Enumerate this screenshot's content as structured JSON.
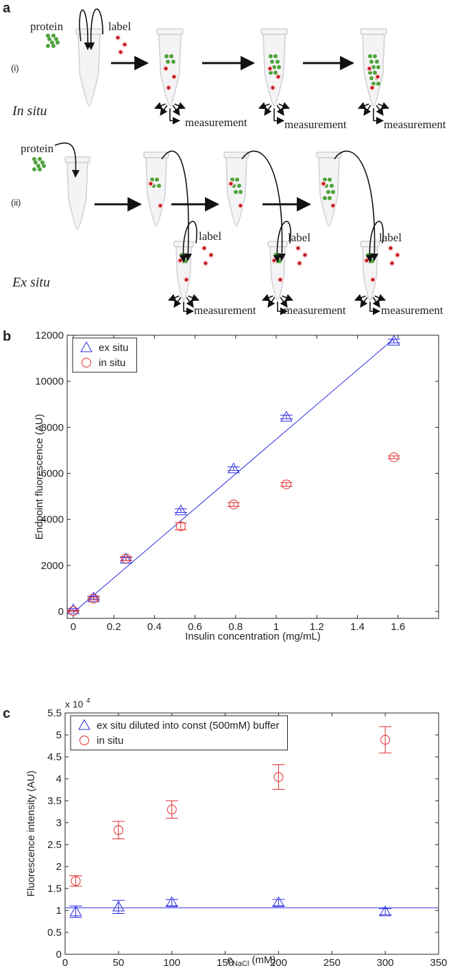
{
  "panel_labels": [
    "a",
    "b",
    "c"
  ],
  "diagram": {
    "row_i": {
      "label": "(i)",
      "name": "In situ",
      "protein": "protein",
      "label_reagent": "label",
      "measurements": [
        "measurement",
        "measurement",
        "measurement"
      ]
    },
    "row_ii": {
      "label": "(ii)",
      "name": "Ex situ",
      "protein": "protein",
      "label_reagents": [
        "label",
        "label",
        "label"
      ],
      "measurements": [
        "measurement",
        "measurement",
        "measurement"
      ]
    }
  },
  "chart_data": [
    {
      "type": "scatter",
      "xlabel": "Insulin concentration (mg/mL)",
      "ylabel": "Endpoint fluorescence (AU)",
      "xlim": [
        -0.03,
        1.8
      ],
      "xticks": [
        0,
        0.2,
        0.4,
        0.6,
        0.8,
        1,
        1.2,
        1.4,
        1.6
      ],
      "ylim": [
        -300,
        12000
      ],
      "yticks": [
        0,
        2000,
        4000,
        6000,
        8000,
        10000,
        12000
      ],
      "legend": "upper-left",
      "series": [
        {
          "name": "ex situ",
          "color": "#2a2ae0",
          "marker": "triangle",
          "x": [
            0,
            0.1,
            0.26,
            0.53,
            0.79,
            1.05,
            1.58
          ],
          "values": [
            80,
            600,
            2280,
            4380,
            6200,
            8450,
            11750
          ],
          "errors": [
            40,
            60,
            60,
            80,
            80,
            80,
            80
          ]
        },
        {
          "name": "in situ",
          "color": "#e02a2a",
          "marker": "circle",
          "x": [
            0,
            0.1,
            0.26,
            0.53,
            0.79,
            1.05,
            1.58
          ],
          "values": [
            20,
            560,
            2300,
            3700,
            4650,
            5520,
            6700
          ],
          "errors": [
            30,
            60,
            80,
            150,
            80,
            80,
            60
          ]
        }
      ],
      "fit": {
        "color": "#2a2ae0",
        "x": [
          0,
          1.58
        ],
        "values": [
          -50,
          11850
        ]
      }
    },
    {
      "type": "scatter",
      "xlabel_parts": [
        "c",
        "NaCl",
        " (mM)"
      ],
      "ylabel": "Fluorescence intensity (AU)",
      "multiplier": [
        "x 10",
        "4"
      ],
      "xlim": [
        0,
        350
      ],
      "xticks": [
        0,
        50,
        100,
        150,
        200,
        250,
        300,
        350
      ],
      "ylim": [
        0,
        5.5
      ],
      "yticks": [
        0,
        0.5,
        1,
        1.5,
        2,
        2.5,
        3,
        3.5,
        4,
        4.5,
        5,
        5.5
      ],
      "legend": "upper-left",
      "series": [
        {
          "name": "ex situ diluted into const (500mM) buffer",
          "color": "#2a2ae0",
          "marker": "triangle",
          "x": [
            10,
            50,
            100,
            200,
            300
          ],
          "values": [
            0.97,
            1.08,
            1.18,
            1.18,
            0.97
          ],
          "errors": [
            0.13,
            0.15,
            0.07,
            0.07,
            0.07
          ]
        },
        {
          "name": "in situ",
          "color": "#e02a2a",
          "marker": "circle",
          "x": [
            10,
            50,
            100,
            200,
            300
          ],
          "values": [
            1.67,
            2.83,
            3.3,
            4.04,
            4.89
          ],
          "errors": [
            0.12,
            0.2,
            0.2,
            0.28,
            0.3
          ]
        }
      ],
      "fit": {
        "color": "#2a2ae0",
        "x": [
          0,
          350
        ],
        "values": [
          1.06,
          1.06
        ]
      }
    }
  ]
}
